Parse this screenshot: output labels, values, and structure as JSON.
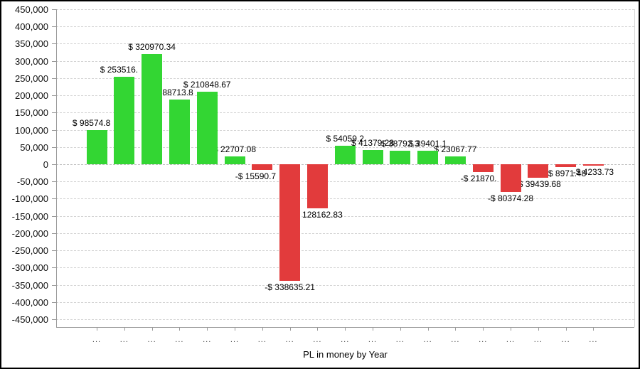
{
  "window": {
    "background": "#ffffff",
    "border_color": "#000000"
  },
  "chart_data": {
    "type": "bar",
    "title": "PL in money by Year",
    "legend": "none",
    "grid": "horizontal-dashed",
    "y_axis": {
      "min": -450000,
      "max": 450000,
      "step": 50000,
      "tick_labels": [
        "450,000",
        "400,000",
        "350,000",
        "300,000",
        "250,000",
        "200,000",
        "150,000",
        "100,000",
        "50,000",
        "0",
        "-50,000",
        "-100,000",
        "-150,000",
        "-200,000",
        "-250,000",
        "-300,000",
        "-350,000",
        "-400,000",
        "-450,000"
      ]
    },
    "x_axis": {
      "tick_labels": [
        "...",
        "...",
        "...",
        "...",
        "...",
        "...",
        "...",
        "...",
        "...",
        "...",
        "...",
        "...",
        "...",
        "...",
        "...",
        "...",
        "...",
        "...",
        "..."
      ]
    },
    "bars": [
      {
        "category": "...",
        "value": 98574.8,
        "label": "$ 98574.8",
        "label_align": "right"
      },
      {
        "category": "...",
        "value": 253516,
        "label": "$ 253516.",
        "label_align": "right"
      },
      {
        "category": "...",
        "value": 320970.34,
        "label": "$ 320970.34",
        "label_align": "center"
      },
      {
        "category": "...",
        "value": 188713.8,
        "label": "$ 188713.8",
        "label_align": "right"
      },
      {
        "category": "...",
        "value": 210848.67,
        "label": "$ 210848.67",
        "label_align": "center"
      },
      {
        "category": "...",
        "value": 22707.08,
        "label": "$ 22707.08",
        "label_align": "center"
      },
      {
        "category": "...",
        "value": -15590.7,
        "label": "-$ 15590.7",
        "label_align": "right"
      },
      {
        "category": "...",
        "value": -338635.21,
        "label": "-$ 338635.21",
        "label_align": "center"
      },
      {
        "category": "...",
        "value": -128162.83,
        "label": "-$ 128162.83",
        "label_align": "center"
      },
      {
        "category": "...",
        "value": 54059.2,
        "label": "$ 54059.2",
        "label_align": "center"
      },
      {
        "category": "...",
        "value": 41379.28,
        "label": "$ 41379.28",
        "label_align": "center"
      },
      {
        "category": "...",
        "value": 38792.3,
        "label": "$ 38792.3",
        "label_align": "center"
      },
      {
        "category": "...",
        "value": 39401.1,
        "label": "$ 39401.1",
        "label_align": "center"
      },
      {
        "category": "...",
        "value": 23067.77,
        "label": "$ 23067.77",
        "label_align": "center"
      },
      {
        "category": "...",
        "value": -21870,
        "label": "-$ 21870.",
        "label_align": "right"
      },
      {
        "category": "...",
        "value": -80374.28,
        "label": "-$ 80374.28",
        "label_align": "center"
      },
      {
        "category": "...",
        "value": -39439.68,
        "label": "-$ 39439.68",
        "label_align": "center"
      },
      {
        "category": "...",
        "value": -8971.48,
        "label": "-$ 8971.48",
        "label_align": "center"
      },
      {
        "category": "...",
        "value": -4233.73,
        "label": "-$ 4233.73",
        "label_align": "center"
      }
    ],
    "colors": {
      "positive_bar": "#33d633",
      "negative_bar": "#e23b3c",
      "grid_line": "#d4d4d4",
      "axis_line": "#9a9a9a",
      "label_text": "#000000"
    }
  }
}
